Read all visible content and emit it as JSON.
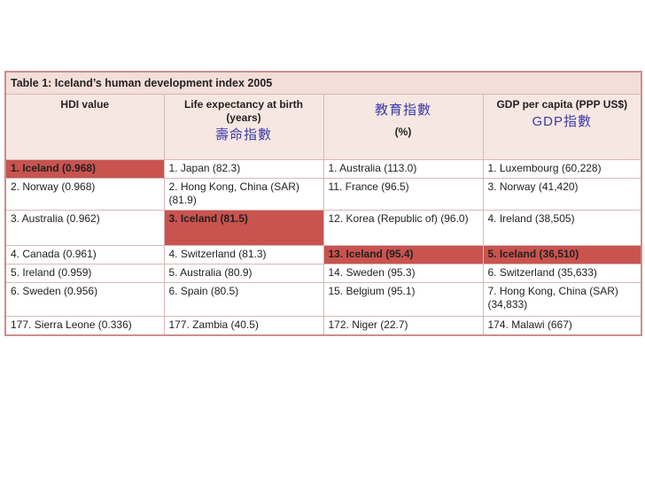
{
  "table": {
    "title": "Table 1: Iceland’s human development index 2005",
    "headers": [
      {
        "label": "HDI value",
        "cjk": "",
        "unit": ""
      },
      {
        "label": "Life expectancy at birth (years)",
        "cjk": "壽命指數",
        "unit": ""
      },
      {
        "label": "",
        "cjk": "教育指數",
        "unit": "(%)"
      },
      {
        "label": "GDP per capita (PPP US$)",
        "cjk": "GDP指數",
        "unit": ""
      }
    ],
    "rows": [
      [
        "1. Iceland (0.968)",
        "1. Japan (82.3)",
        "1. Australia (113.0)",
        "1. Luxembourg (60,228)"
      ],
      [
        "2. Norway (0.968)",
        "2. Hong Kong, China (SAR) (81.9)",
        "11. France (96.5)",
        "3. Norway (41,420)"
      ],
      [
        "3. Australia (0.962)",
        "3. Iceland (81.5)",
        "12. Korea (Republic of) (96.0)",
        "4. Ireland (38,505)"
      ],
      [
        "4. Canada (0.961)",
        "4. Switzerland (81.3)",
        "13. Iceland (95.4)",
        "5. Iceland (36,510)"
      ],
      [
        "5. Ireland (0.959)",
        "5. Australia (80.9)",
        "14. Sweden (95.3)",
        "6. Switzerland (35,633)"
      ],
      [
        "6. Sweden (0.956)",
        "6. Spain (80.5)",
        "15. Belgium (95.1)",
        "7. Hong Kong, China (SAR) (34,833)"
      ],
      [
        "177. Sierra Leone (0.336)",
        "177. Zambia (40.5)",
        "172. Niger (22.7)",
        "174. Malawi (667)"
      ]
    ],
    "highlight_color": "#c9534f",
    "header_bg": "#f7e7e2"
  }
}
